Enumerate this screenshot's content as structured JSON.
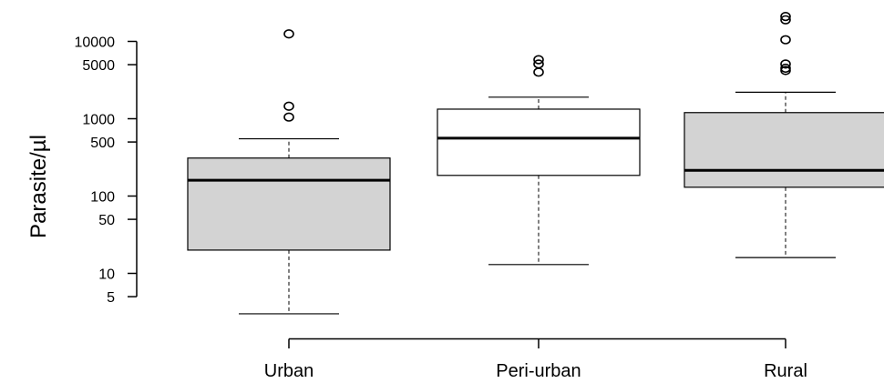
{
  "chart_data": {
    "type": "boxplot",
    "title": "",
    "xlabel": "",
    "ylabel": "Parasite/µl",
    "y_scale": "log",
    "ylim": [
      2.5,
      25000
    ],
    "y_ticks": [
      5,
      10,
      50,
      100,
      500,
      1000,
      5000,
      10000
    ],
    "categories": [
      "Urban",
      "Peri-urban",
      "Rural"
    ],
    "boxes": [
      {
        "category": "Urban",
        "fill": "#d3d3d3",
        "whisker_low": 3,
        "q1": 20,
        "median": 160,
        "q3": 310,
        "whisker_high": 550,
        "outliers": [
          12500,
          1450,
          1050
        ]
      },
      {
        "category": "Peri-urban",
        "fill": "#ffffff",
        "whisker_low": 13,
        "q1": 185,
        "median": 560,
        "q3": 1330,
        "whisker_high": 1900,
        "outliers": [
          5800,
          5100,
          4000
        ]
      },
      {
        "category": "Rural",
        "fill": "#d3d3d3",
        "whisker_low": 16,
        "q1": 130,
        "median": 215,
        "q3": 1200,
        "whisker_high": 2200,
        "outliers": [
          21000,
          19000,
          10500,
          5100,
          4500,
          4200
        ]
      }
    ]
  }
}
